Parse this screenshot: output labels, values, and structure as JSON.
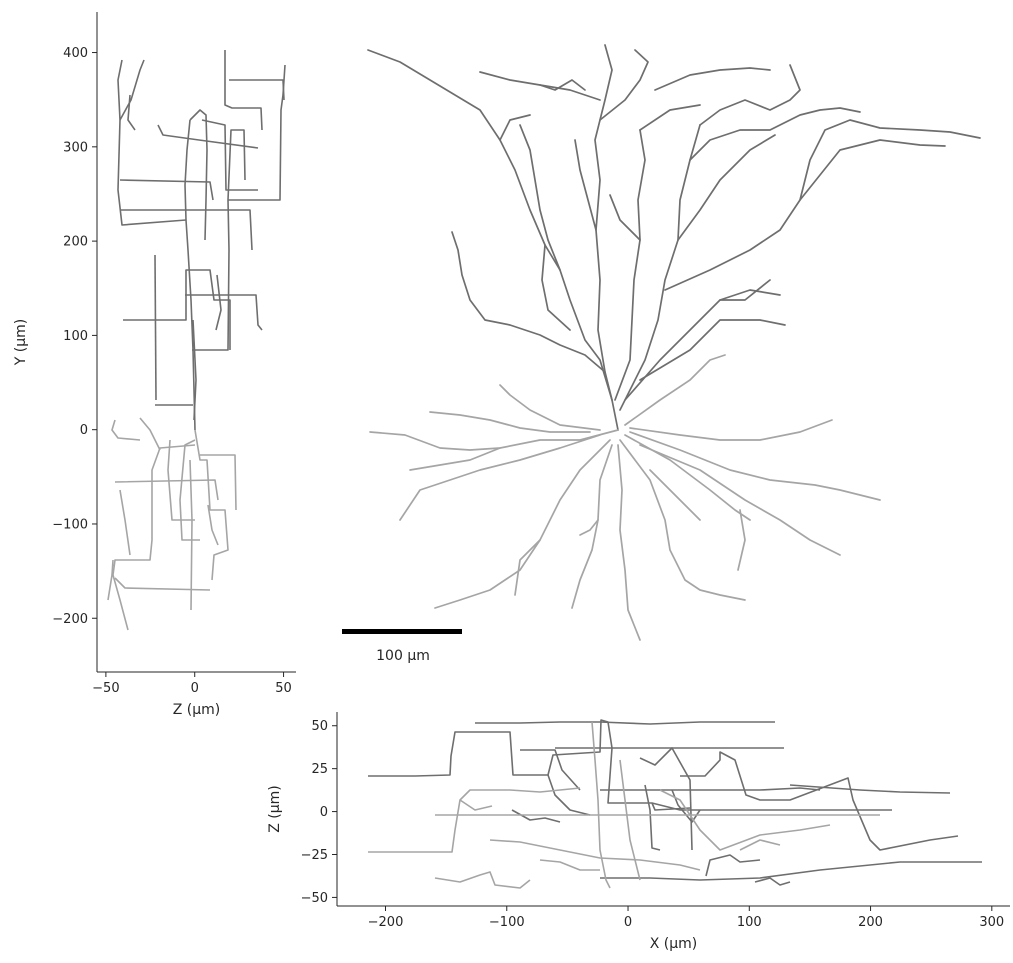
{
  "colors": {
    "apical": "#6e6e6e",
    "basal": "#a5a5a5",
    "axis": "#262626",
    "scalebar": "#000000"
  },
  "scalebar": {
    "label": "100 μm",
    "length_um": 100
  },
  "chart_data": [
    {
      "type": "line",
      "view": "side",
      "xlabel": "Z (μm)",
      "ylabel": "Y (μm)",
      "xlim": [
        -55,
        57
      ],
      "ylim": [
        -257,
        443
      ],
      "xticks": [
        -50,
        0,
        50
      ],
      "xtick_labels": [
        "−50",
        "0",
        "50"
      ],
      "yticks": [
        -200,
        -100,
        0,
        100,
        200,
        300,
        400
      ],
      "ytick_labels": [
        "−200",
        "−100",
        "0",
        "100",
        "200",
        "300",
        "400"
      ],
      "grid": false
    },
    {
      "type": "line",
      "view": "bottom",
      "xlabel": "X (μm)",
      "ylabel": "Z (μm)",
      "xlim": [
        -240,
        315
      ],
      "ylim": [
        -55,
        58
      ],
      "xticks": [
        -200,
        -100,
        0,
        100,
        200,
        300
      ],
      "xtick_labels": [
        "−200",
        "−100",
        "0",
        "100",
        "200",
        "300"
      ],
      "yticks": [
        -50,
        -25,
        0,
        25,
        50
      ],
      "ytick_labels": [
        "−50",
        "−25",
        "0",
        "25",
        "50"
      ],
      "grid": false
    }
  ]
}
